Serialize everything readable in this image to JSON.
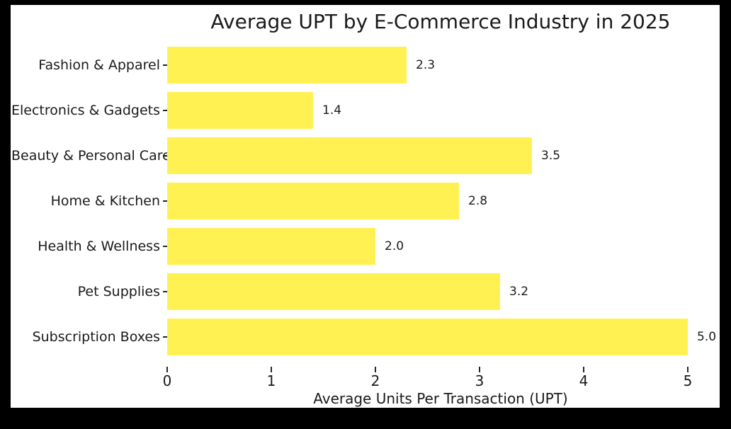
{
  "chart_data": {
    "type": "bar",
    "orientation": "horizontal",
    "title": "Average UPT by E-Commerce Industry in 2025",
    "categories": [
      "Fashion & Apparel",
      "Electronics & Gadgets",
      "Beauty & Personal Care",
      "Home & Kitchen",
      "Health & Wellness",
      "Pet Supplies",
      "Subscription Boxes"
    ],
    "values": [
      2.3,
      1.4,
      3.5,
      2.8,
      2.0,
      3.2,
      5.0
    ],
    "value_labels": [
      "2.3",
      "1.4",
      "3.5",
      "2.8",
      "2.0",
      "3.2",
      "5.0"
    ],
    "xlabel": "Average Units Per Transaction (UPT)",
    "ylabel": "",
    "xlim": [
      0,
      5.25
    ],
    "x_ticks": [
      "0",
      "1",
      "2",
      "3",
      "4",
      "5"
    ],
    "grid": false,
    "legend": false,
    "bar_color": "#FFF152",
    "plot_background": "#FFFFFF",
    "outer_background": "#000000",
    "text_color": "#1a1a1a"
  }
}
